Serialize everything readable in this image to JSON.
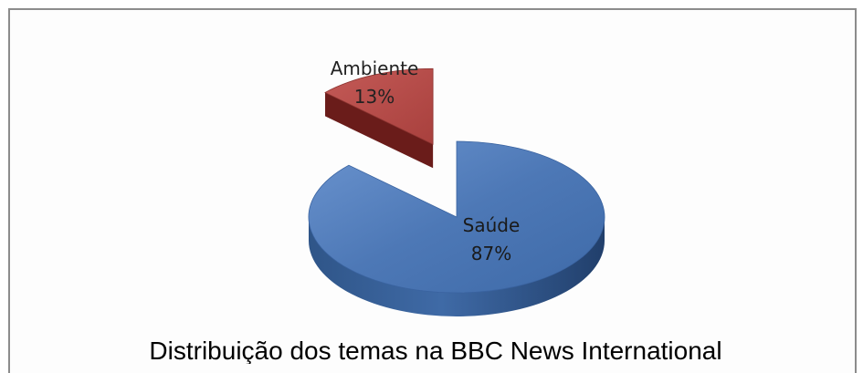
{
  "chart_data": {
    "type": "pie",
    "title": "Distribuição dos temas na BBC News International",
    "slices": [
      {
        "label": "Saúde",
        "value": 87,
        "value_label": "87%",
        "color": "#4f7bba"
      },
      {
        "label": "Ambiente",
        "value": 13,
        "value_label": "13%",
        "color": "#b84a47"
      }
    ],
    "exploded": "Ambiente",
    "style": "3d",
    "legend": "none"
  }
}
